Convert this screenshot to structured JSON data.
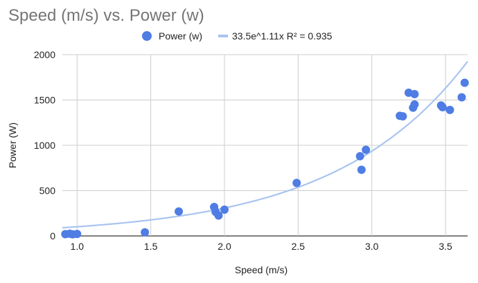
{
  "chart_data": {
    "type": "scatter",
    "title": "Speed (m/s) vs. Power (w)",
    "xlabel": "Speed (m/s)",
    "ylabel": "Power (W)",
    "xlim": [
      0.9,
      3.65
    ],
    "ylim": [
      0,
      2000
    ],
    "x_ticks": [
      1.0,
      1.5,
      2.0,
      2.5,
      3.0,
      3.5
    ],
    "x_tick_labels": [
      "1.0",
      "1.5",
      "2.0",
      "2.5",
      "3.0",
      "3.5"
    ],
    "y_ticks": [
      0,
      500,
      1000,
      1500,
      2000
    ],
    "y_tick_labels": [
      "0",
      "500",
      "1000",
      "1500",
      "2000"
    ],
    "grid": true,
    "legend_position": "top",
    "series": [
      {
        "name": "Power (w)",
        "color": "#4f7de4",
        "points": [
          {
            "x": 0.92,
            "y": 20
          },
          {
            "x": 0.95,
            "y": 25
          },
          {
            "x": 0.97,
            "y": 18
          },
          {
            "x": 1.0,
            "y": 22
          },
          {
            "x": 1.46,
            "y": 40
          },
          {
            "x": 1.69,
            "y": 270
          },
          {
            "x": 1.93,
            "y": 320
          },
          {
            "x": 1.94,
            "y": 265
          },
          {
            "x": 1.96,
            "y": 225
          },
          {
            "x": 2.0,
            "y": 290
          },
          {
            "x": 2.49,
            "y": 585
          },
          {
            "x": 2.92,
            "y": 880
          },
          {
            "x": 2.93,
            "y": 730
          },
          {
            "x": 2.96,
            "y": 950
          },
          {
            "x": 3.19,
            "y": 1325
          },
          {
            "x": 3.21,
            "y": 1320
          },
          {
            "x": 3.25,
            "y": 1580
          },
          {
            "x": 3.28,
            "y": 1415
          },
          {
            "x": 3.29,
            "y": 1450
          },
          {
            "x": 3.29,
            "y": 1565
          },
          {
            "x": 3.47,
            "y": 1440
          },
          {
            "x": 3.48,
            "y": 1420
          },
          {
            "x": 3.53,
            "y": 1390
          },
          {
            "x": 3.61,
            "y": 1530
          },
          {
            "x": 3.63,
            "y": 1690
          }
        ]
      },
      {
        "name": "33.5e^1.11x R² = 0.935",
        "type": "trendline",
        "color": "#a9c4f0",
        "coefficient": 33.5,
        "exponent": 1.11,
        "r_squared": 0.935
      }
    ]
  }
}
